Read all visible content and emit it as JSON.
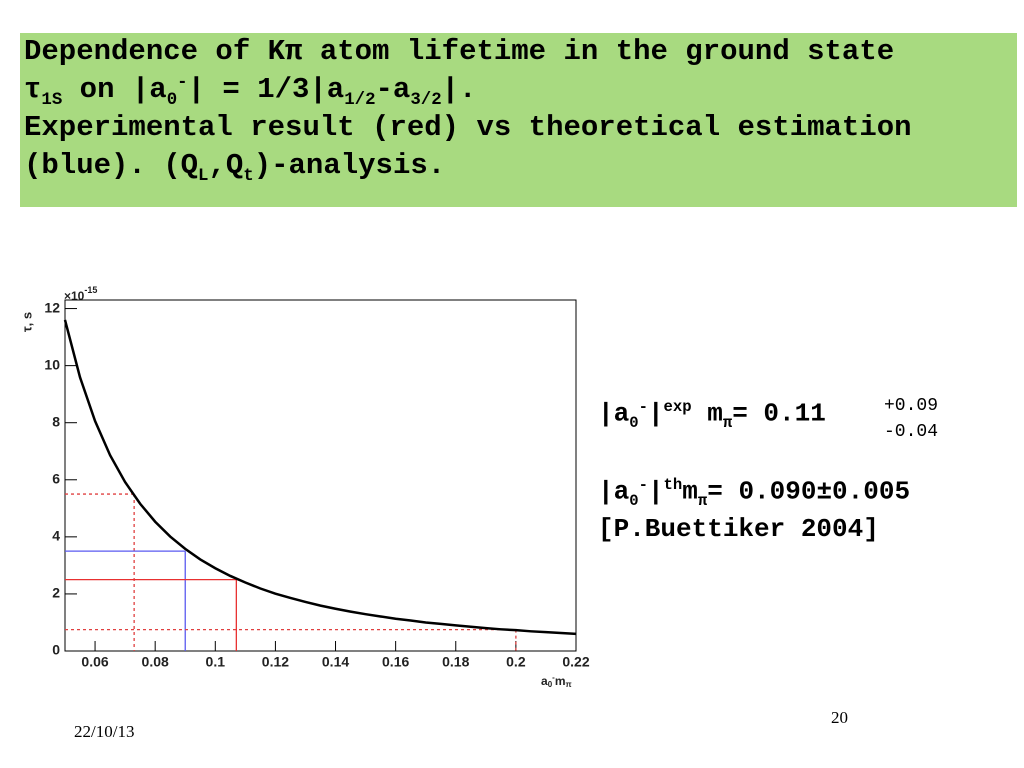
{
  "header": {
    "lines": [
      [
        {
          "text": "Dependence of Kπ atom lifetime in the ground state"
        }
      ],
      [
        {
          "text": "τ"
        },
        {
          "text": "1S",
          "pos": "sub"
        },
        {
          "text": " on |a"
        },
        {
          "text": "0",
          "pos": "sub"
        },
        {
          "text": "-",
          "pos": "sup"
        },
        {
          "text": "| = 1/3|a"
        },
        {
          "text": "1/2",
          "pos": "sub"
        },
        {
          "text": "-a"
        },
        {
          "text": "3/2",
          "pos": "sub"
        },
        {
          "text": "|."
        }
      ],
      [
        {
          "text": "Experimental result (red) vs theoretical estimation"
        }
      ],
      [
        {
          "text": "(blue). (Q"
        },
        {
          "text": "L",
          "pos": "sub"
        },
        {
          "text": ",Q"
        },
        {
          "text": "t",
          "pos": "sub"
        },
        {
          "text": ")-analysis."
        }
      ]
    ]
  },
  "chart_data": {
    "type": "line",
    "y_label": "τ, s",
    "y_multiplier": {
      "base": "×10",
      "exponent": "-15"
    },
    "x_label": [
      {
        "text": "a"
      },
      {
        "text": "0",
        "pos": "sub"
      },
      {
        "text": "-",
        "pos": "sup"
      },
      {
        "text": "m"
      },
      {
        "text": "π",
        "pos": "sub"
      }
    ],
    "x": [
      0.05,
      0.055,
      0.06,
      0.065,
      0.07,
      0.075,
      0.08,
      0.085,
      0.09,
      0.095,
      0.1,
      0.105,
      0.11,
      0.115,
      0.12,
      0.125,
      0.13,
      0.135,
      0.14,
      0.145,
      0.15,
      0.155,
      0.16,
      0.165,
      0.17,
      0.175,
      0.18,
      0.185,
      0.19,
      0.195,
      0.2,
      0.205,
      0.21,
      0.215,
      0.22
    ],
    "series": [
      {
        "color": "#000000",
        "values": [
          11.6,
          9.59,
          8.06,
          6.86,
          5.92,
          5.16,
          4.53,
          4.01,
          3.58,
          3.21,
          2.9,
          2.63,
          2.4,
          2.19,
          2.01,
          1.86,
          1.72,
          1.59,
          1.48,
          1.38,
          1.29,
          1.21,
          1.13,
          1.07,
          1.0,
          0.95,
          0.9,
          0.85,
          0.8,
          0.76,
          0.73,
          0.69,
          0.66,
          0.63,
          0.6
        ]
      }
    ],
    "guides": [
      {
        "x": 0.073,
        "y": 5.5,
        "color": "#e04040",
        "dashed": true
      },
      {
        "x": 0.09,
        "y": 3.5,
        "color": "#5a5af0",
        "dashed": false
      },
      {
        "x": 0.107,
        "y": 2.5,
        "color": "#e83030",
        "dashed": false
      },
      {
        "x": 0.2,
        "y": 0.75,
        "color": "#e04040",
        "dashed": true
      }
    ],
    "xlim": [
      0.05,
      0.22
    ],
    "xticks": [
      0.06,
      0.08,
      0.1,
      0.12,
      0.14,
      0.16,
      0.18,
      0.2,
      0.22
    ],
    "ylim": [
      0,
      12.3
    ],
    "yticks": [
      0,
      2,
      4,
      6,
      8,
      10,
      12
    ]
  },
  "results": {
    "experimental": {
      "segments": [
        {
          "text": "|a"
        },
        {
          "text": "0",
          "pos": "sub"
        },
        {
          "text": "-",
          "pos": "sup"
        },
        {
          "text": "|"
        },
        {
          "text": "exp",
          "pos": "sup"
        },
        {
          "text": " m"
        },
        {
          "text": "π",
          "pos": "sub"
        },
        {
          "text": "= 0.11"
        }
      ],
      "plus": "+0.09",
      "minus": "-0.04"
    },
    "theoretical": {
      "segments": [
        {
          "text": "|a"
        },
        {
          "text": "0",
          "pos": "sub"
        },
        {
          "text": "-",
          "pos": "sup"
        },
        {
          "text": "|"
        },
        {
          "text": "th",
          "pos": "sup"
        },
        {
          "text": "m"
        },
        {
          "text": "π",
          "pos": "sub"
        },
        {
          "text": "= 0.090±0.005"
        }
      ]
    },
    "reference": "[P.Buettiker 2004]"
  },
  "footer": {
    "date": "22/10/13",
    "page": "20"
  }
}
